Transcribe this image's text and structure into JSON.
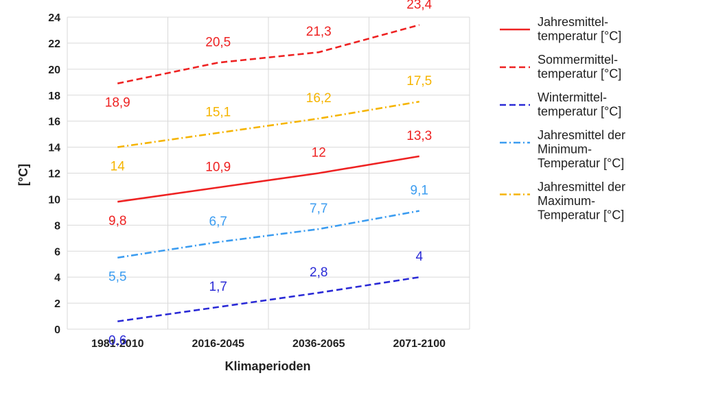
{
  "chart_data": {
    "type": "line",
    "xlabel": "Klimaperioden",
    "ylabel": "[°C]",
    "ylim": [
      0,
      24
    ],
    "yticks": [
      0,
      2,
      4,
      6,
      8,
      10,
      12,
      14,
      16,
      18,
      20,
      22,
      24
    ],
    "grid": true,
    "legend_position": "right",
    "categories": [
      "1981-2010",
      "2016-2045",
      "2036-2065",
      "2071-2100"
    ],
    "series": [
      {
        "key": "jahresmittel",
        "legend_lines": [
          "Jahresmittel-",
          "temperatur [°C]"
        ],
        "values": [
          9.8,
          10.9,
          12,
          13.3
        ],
        "labels": [
          "9,8",
          "10,9",
          "12",
          "13,3"
        ],
        "color": "#ee2222",
        "dash": "solid"
      },
      {
        "key": "sommermittel",
        "legend_lines": [
          "Sommermittel-",
          "temperatur [°C]"
        ],
        "values": [
          18.9,
          20.5,
          21.3,
          23.4
        ],
        "labels": [
          "18,9",
          "20,5",
          "21,3",
          "23,4"
        ],
        "color": "#ee2222",
        "dash": "dashed"
      },
      {
        "key": "wintermittel",
        "legend_lines": [
          "Wintermittel-",
          "temperatur [°C]"
        ],
        "values": [
          0.6,
          1.7,
          2.8,
          4
        ],
        "labels": [
          "0,6",
          "1,7",
          "2,8",
          "4"
        ],
        "color": "#2a2ad6",
        "dash": "dashed"
      },
      {
        "key": "minimum",
        "legend_lines": [
          "Jahresmittel der",
          "Minimum-",
          "Temperatur [°C]"
        ],
        "values": [
          5.5,
          6.7,
          7.7,
          9.1
        ],
        "labels": [
          "5,5",
          "6,7",
          "7,7",
          "9,1"
        ],
        "color": "#3b9cf0",
        "dash": "dashdot"
      },
      {
        "key": "maximum",
        "legend_lines": [
          "Jahresmittel der",
          "Maximum-",
          "Temperatur [°C]"
        ],
        "values": [
          14,
          15.1,
          16.2,
          17.5
        ],
        "labels": [
          "14",
          "15,1",
          "16,2",
          "17,5"
        ],
        "color": "#f5b400",
        "dash": "dashdot"
      }
    ]
  }
}
